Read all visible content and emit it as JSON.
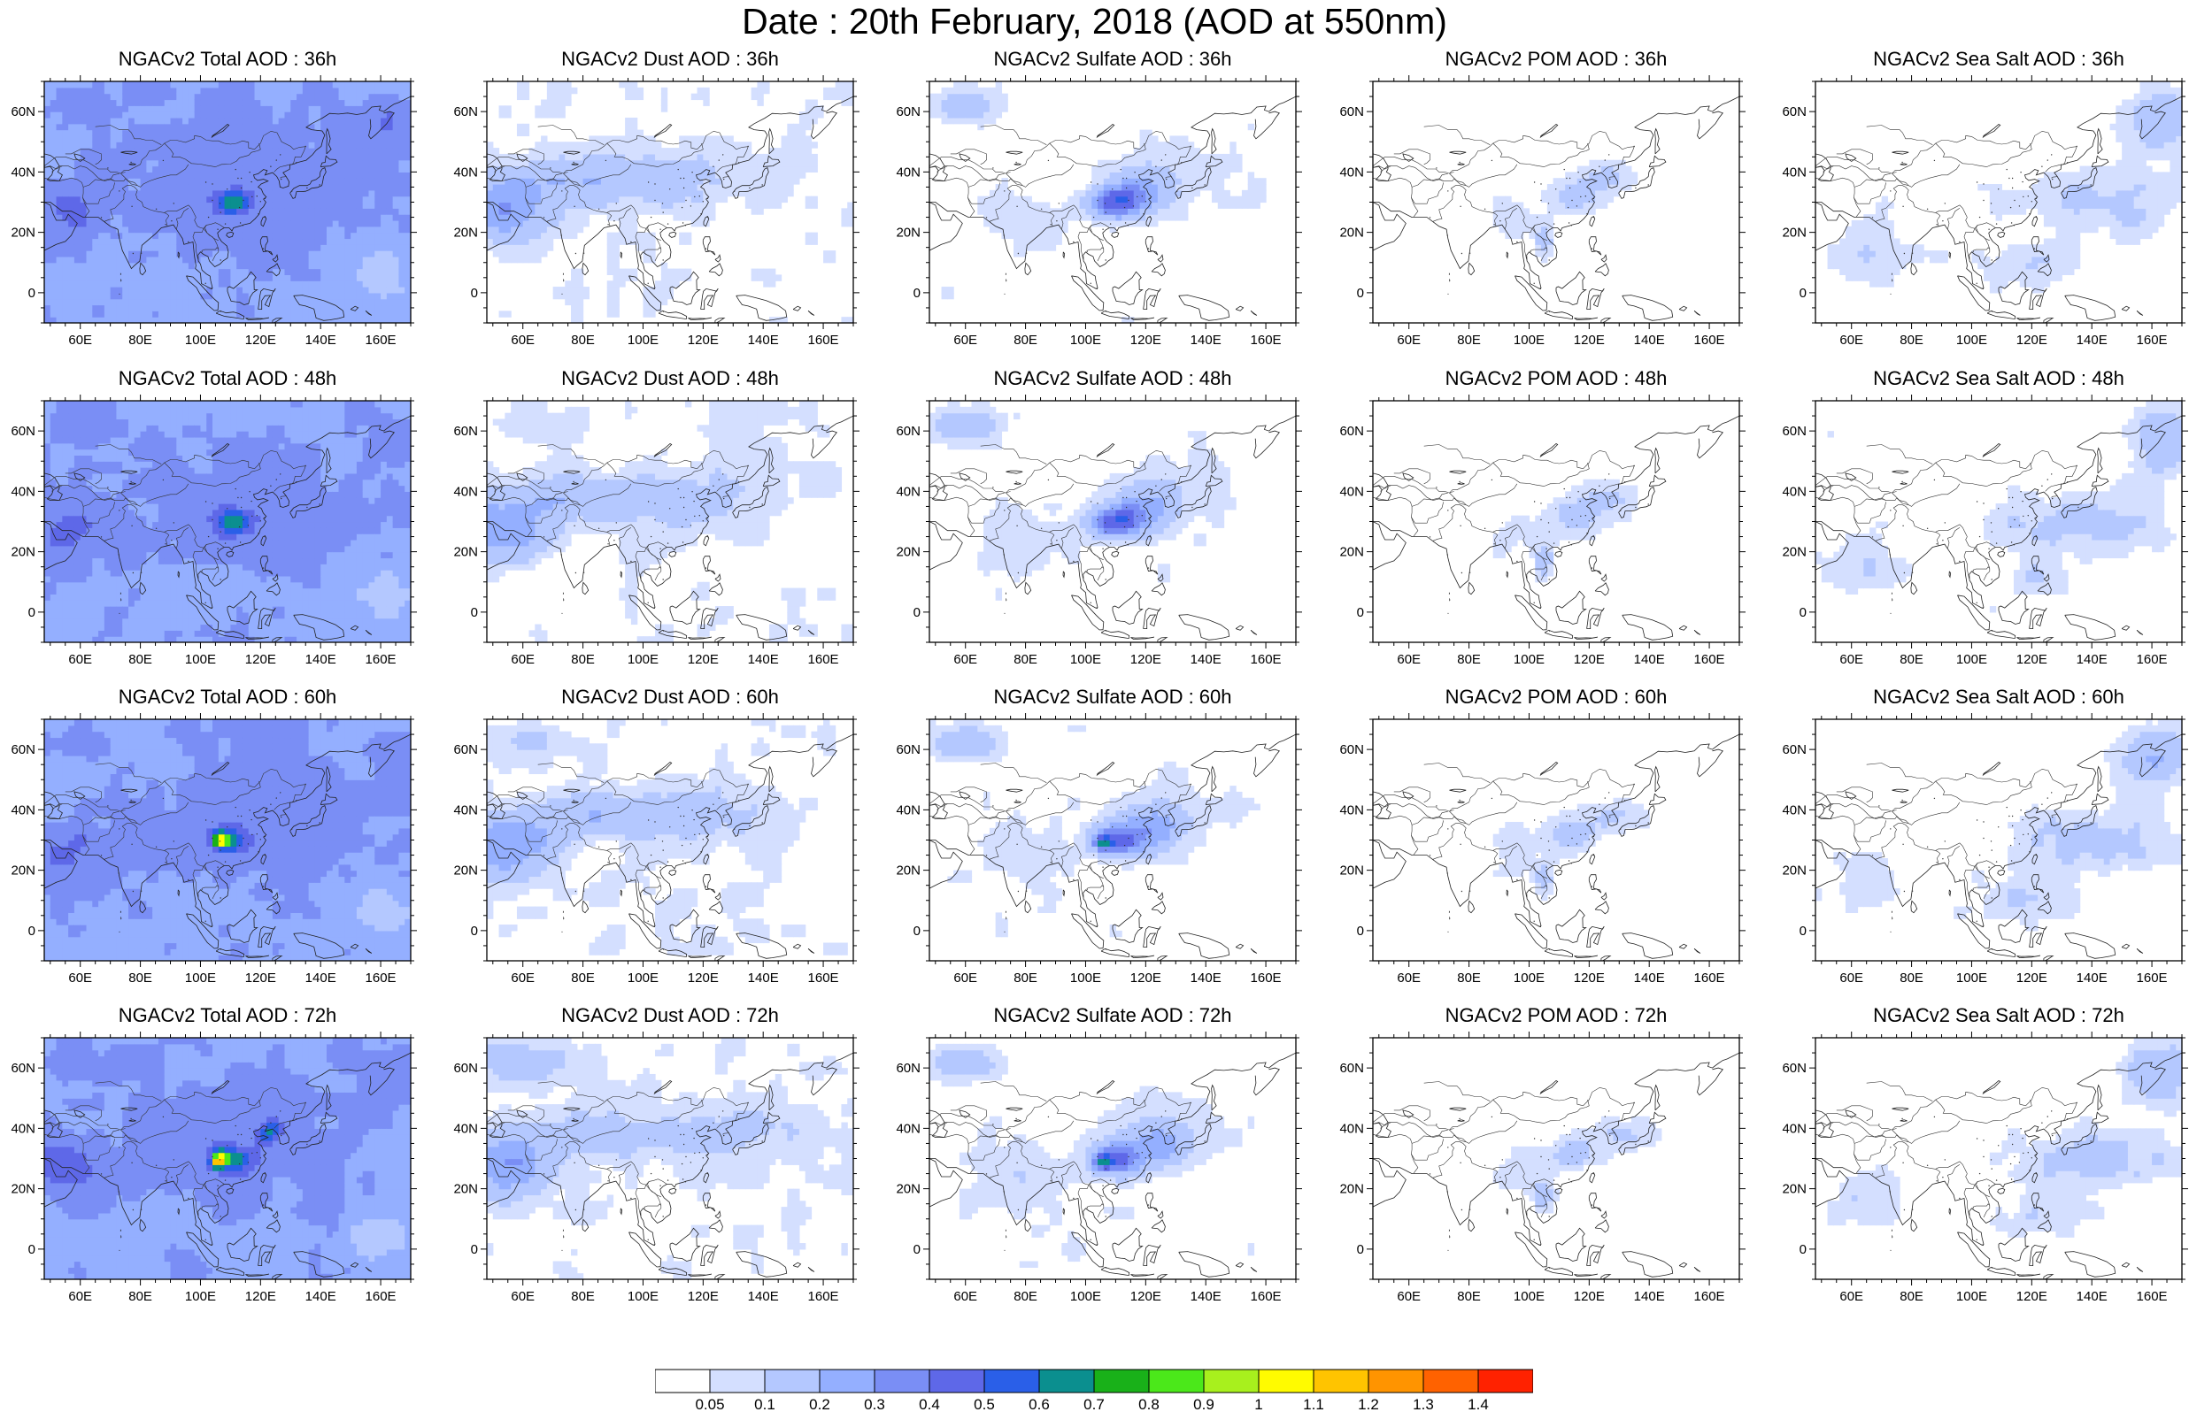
{
  "title": "Date : 20th February, 2018 (AOD at 550nm)",
  "panels": [
    {
      "title": "NGACv2 Total AOD : 36h",
      "species": "total",
      "hour": 36
    },
    {
      "title": "NGACv2 Dust AOD : 36h",
      "species": "dust",
      "hour": 36
    },
    {
      "title": "NGACv2 Sulfate AOD : 36h",
      "species": "sulfate",
      "hour": 36
    },
    {
      "title": "NGACv2 POM AOD : 36h",
      "species": "pom",
      "hour": 36
    },
    {
      "title": "NGACv2 Sea Salt AOD : 36h",
      "species": "seasalt",
      "hour": 36
    },
    {
      "title": "NGACv2 Total AOD : 48h",
      "species": "total",
      "hour": 48
    },
    {
      "title": "NGACv2 Dust AOD : 48h",
      "species": "dust",
      "hour": 48
    },
    {
      "title": "NGACv2 Sulfate AOD : 48h",
      "species": "sulfate",
      "hour": 48
    },
    {
      "title": "NGACv2 POM AOD : 48h",
      "species": "pom",
      "hour": 48
    },
    {
      "title": "NGACv2 Sea Salt AOD : 48h",
      "species": "seasalt",
      "hour": 48
    },
    {
      "title": "NGACv2 Total AOD : 60h",
      "species": "total",
      "hour": 60
    },
    {
      "title": "NGACv2 Dust AOD : 60h",
      "species": "dust",
      "hour": 60
    },
    {
      "title": "NGACv2 Sulfate AOD : 60h",
      "species": "sulfate",
      "hour": 60
    },
    {
      "title": "NGACv2 POM AOD : 60h",
      "species": "pom",
      "hour": 60
    },
    {
      "title": "NGACv2 Sea Salt AOD : 60h",
      "species": "seasalt",
      "hour": 60
    },
    {
      "title": "NGACv2 Total AOD : 72h",
      "species": "total",
      "hour": 72
    },
    {
      "title": "NGACv2 Dust AOD : 72h",
      "species": "dust",
      "hour": 72
    },
    {
      "title": "NGACv2 Sulfate AOD : 72h",
      "species": "sulfate",
      "hour": 72
    },
    {
      "title": "NGACv2 POM AOD : 72h",
      "species": "pom",
      "hour": 72
    },
    {
      "title": "NGACv2 Sea Salt  AOD : 72h",
      "species": "seasalt",
      "hour": 72
    }
  ],
  "map": {
    "lon_range": [
      48,
      170
    ],
    "lat_range": [
      -10,
      70
    ],
    "lon_ticks": [
      60,
      80,
      100,
      120,
      140,
      160
    ],
    "lon_tick_labels": [
      "60E",
      "80E",
      "100E",
      "120E",
      "140E",
      "160E"
    ],
    "lat_ticks": [
      0,
      20,
      40,
      60
    ],
    "lat_tick_labels": [
      "0",
      "20N",
      "40N",
      "60N"
    ]
  },
  "colorbar": {
    "labels": [
      "0.05",
      "0.1",
      "0.2",
      "0.3",
      "0.4",
      "0.5",
      "0.6",
      "0.7",
      "0.8",
      "0.9",
      "1",
      "1.1",
      "1.2",
      "1.3",
      "1.4"
    ],
    "colors": [
      "#ffffff",
      "#d4dfff",
      "#b4c8ff",
      "#94afff",
      "#7a8ef5",
      "#5e68e8",
      "#2a5fe8",
      "#0b8f8f",
      "#19b119",
      "#4be81a",
      "#a8f01d",
      "#fffb00",
      "#ffc400",
      "#ff9400",
      "#ff6200",
      "#ff2200"
    ]
  }
}
